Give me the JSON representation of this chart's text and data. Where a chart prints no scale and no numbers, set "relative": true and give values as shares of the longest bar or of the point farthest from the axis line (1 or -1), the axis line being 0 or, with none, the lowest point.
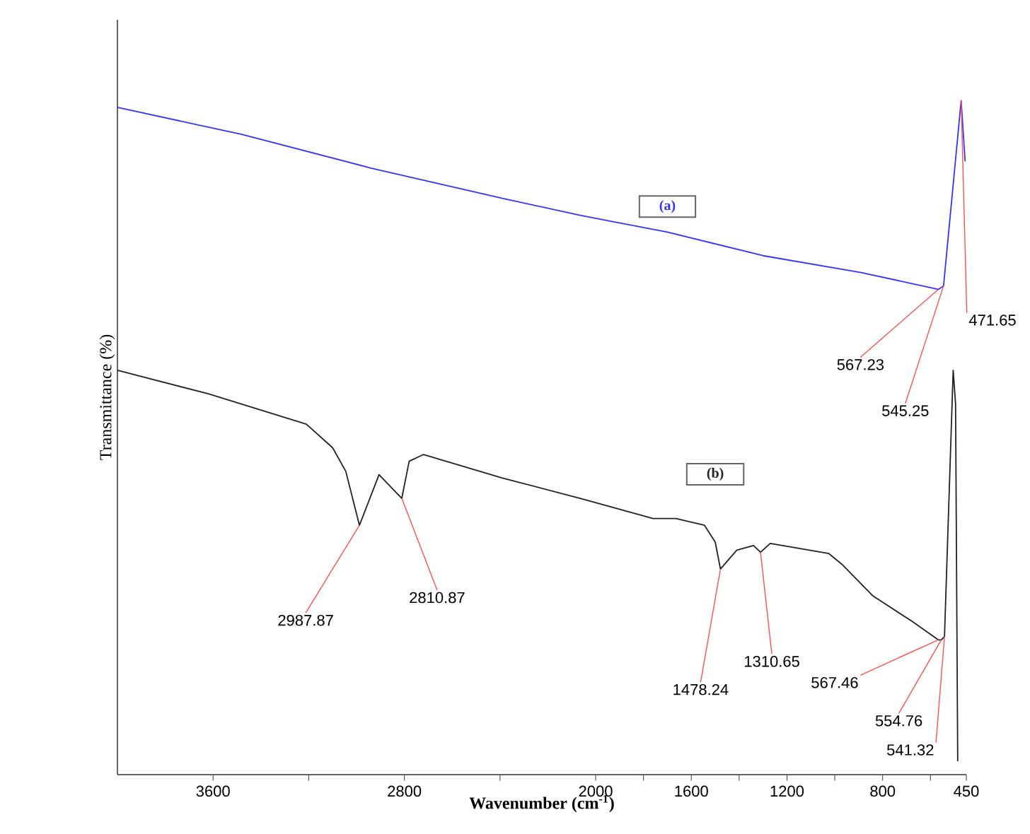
{
  "chart_data": {
    "type": "line",
    "relative": true,
    "xlabel": "Wavenumber (cm$^{-1}$)",
    "ylabel": "Transmittance (%)",
    "xlim": [
      4000,
      450
    ],
    "xticks": [
      3600,
      {
        "value": 3200,
        "label": null
      },
      2800,
      {
        "value": 2400,
        "label": null
      },
      2000,
      {
        "value": 1800,
        "label": null
      },
      1600,
      {
        "value": 1400,
        "label": null
      },
      1200,
      {
        "value": 1000,
        "label": null
      },
      800,
      {
        "value": 600,
        "label": null
      },
      450
    ],
    "grid": false,
    "marker": "none",
    "line_style": "solid",
    "series": [
      {
        "name": "(a)",
        "color": "#3333ff",
        "x": [
          4000,
          3480,
          2940,
          2390,
          2065,
          1920,
          1700,
          1300,
          890,
          567.23,
          545.25,
          471.65,
          455
        ],
        "values": [
          0.99,
          0.95,
          0.9,
          0.855,
          0.83,
          0.82,
          0.805,
          0.77,
          0.745,
          0.72,
          0.725,
          1.0,
          0.91
        ]
      },
      {
        "name": "(b)",
        "color": "#222222",
        "x": [
          4000,
          3620,
          3210,
          3100,
          3045,
          2987.87,
          2906,
          2810.87,
          2780,
          2720,
          2390,
          2065,
          1760,
          1665,
          1545,
          1500,
          1478.24,
          1410,
          1340,
          1310.65,
          1270,
          1025,
          970,
          840,
          675,
          567.46,
          554.76,
          541.32,
          505,
          495,
          486
        ],
        "values": [
          0.6,
          0.565,
          0.52,
          0.485,
          0.45,
          0.37,
          0.445,
          0.41,
          0.465,
          0.475,
          0.44,
          0.41,
          0.38,
          0.38,
          0.37,
          0.345,
          0.305,
          0.333,
          0.34,
          0.33,
          0.343,
          0.328,
          0.312,
          0.265,
          0.227,
          0.2,
          0.2,
          0.205,
          0.6,
          0.55,
          0.02
        ]
      }
    ],
    "annotations": [
      {
        "text": "567.23",
        "x": 567.23,
        "y": 0.72
      },
      {
        "text": "545.25",
        "x": 545.25,
        "y": 0.725
      },
      {
        "text": "471.65",
        "x": 471.65,
        "y": 1.0
      },
      {
        "text": "2987.87",
        "x": 2987.87,
        "y": 0.37
      },
      {
        "text": "2810.87",
        "x": 2810.87,
        "y": 0.41
      },
      {
        "text": "1478.24",
        "x": 1478.24,
        "y": 0.305
      },
      {
        "text": "1310.65",
        "x": 1310.65,
        "y": 0.33
      },
      {
        "text": "567.46",
        "x": 567.46,
        "y": 0.2
      },
      {
        "text": "554.76",
        "x": 554.76,
        "y": 0.2
      },
      {
        "text": "541.32",
        "x": 541.32,
        "y": 0.205
      }
    ]
  }
}
